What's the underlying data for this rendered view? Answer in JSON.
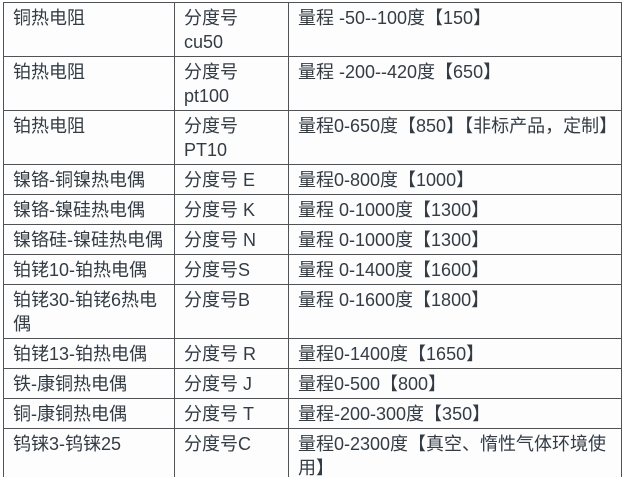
{
  "colors": {
    "text": "#333c45",
    "border": "#4f5358",
    "background": "#fdfdfd"
  },
  "table": {
    "description": "temperature-sensor-specification-table",
    "columns": [
      "sensor_type",
      "index_code",
      "range"
    ],
    "rows": [
      {
        "type": "铜热电阻",
        "index": "分度号\ncu50",
        "range": "量程 -50--100度【150】"
      },
      {
        "type": "铂热电阻",
        "index": "分度号\npt100",
        "range": "量程 -200--420度【650】"
      },
      {
        "type": "铂热电阻",
        "index": "分度号\nPT10",
        "range": "量程0-650度【850】【非标产品，定制】"
      },
      {
        "type": "镍铬-铜镍热电偶",
        "index": "分度号 E",
        "range": "量程0-800度【1000】"
      },
      {
        "type": "镍铬-镍硅热电偶",
        "index": "分度号 K",
        "range": "量程 0-1000度【1300】"
      },
      {
        "type": "镍铬硅-镍硅热电偶",
        "index": "分度号 N",
        "range": "量程 0-1000度【1300】"
      },
      {
        "type": "铂铑10-铂热电偶",
        "index": "分度号S",
        "range": "量程 0-1400度【1600】"
      },
      {
        "type": "铂铑30-铂铑6热电偶",
        "index": "分度号B",
        "range": "量程 0-1600度【1800】"
      },
      {
        "type": "铂铑13-铂热电偶",
        "index": "分度号 R",
        "range": "量程0-1400度【1650】"
      },
      {
        "type": "铁-康铜热电偶",
        "index": "分度号 J",
        "range": "量程0-500【800】"
      },
      {
        "type": "铜-康铜热电偶",
        "index": "分度号 T",
        "range": "量程-200-300度【350】"
      },
      {
        "type": "钨铼3-钨铼25",
        "index": "分度号C",
        "range": "量程0-2300度【真空、惰性气体环境使用】"
      }
    ]
  }
}
